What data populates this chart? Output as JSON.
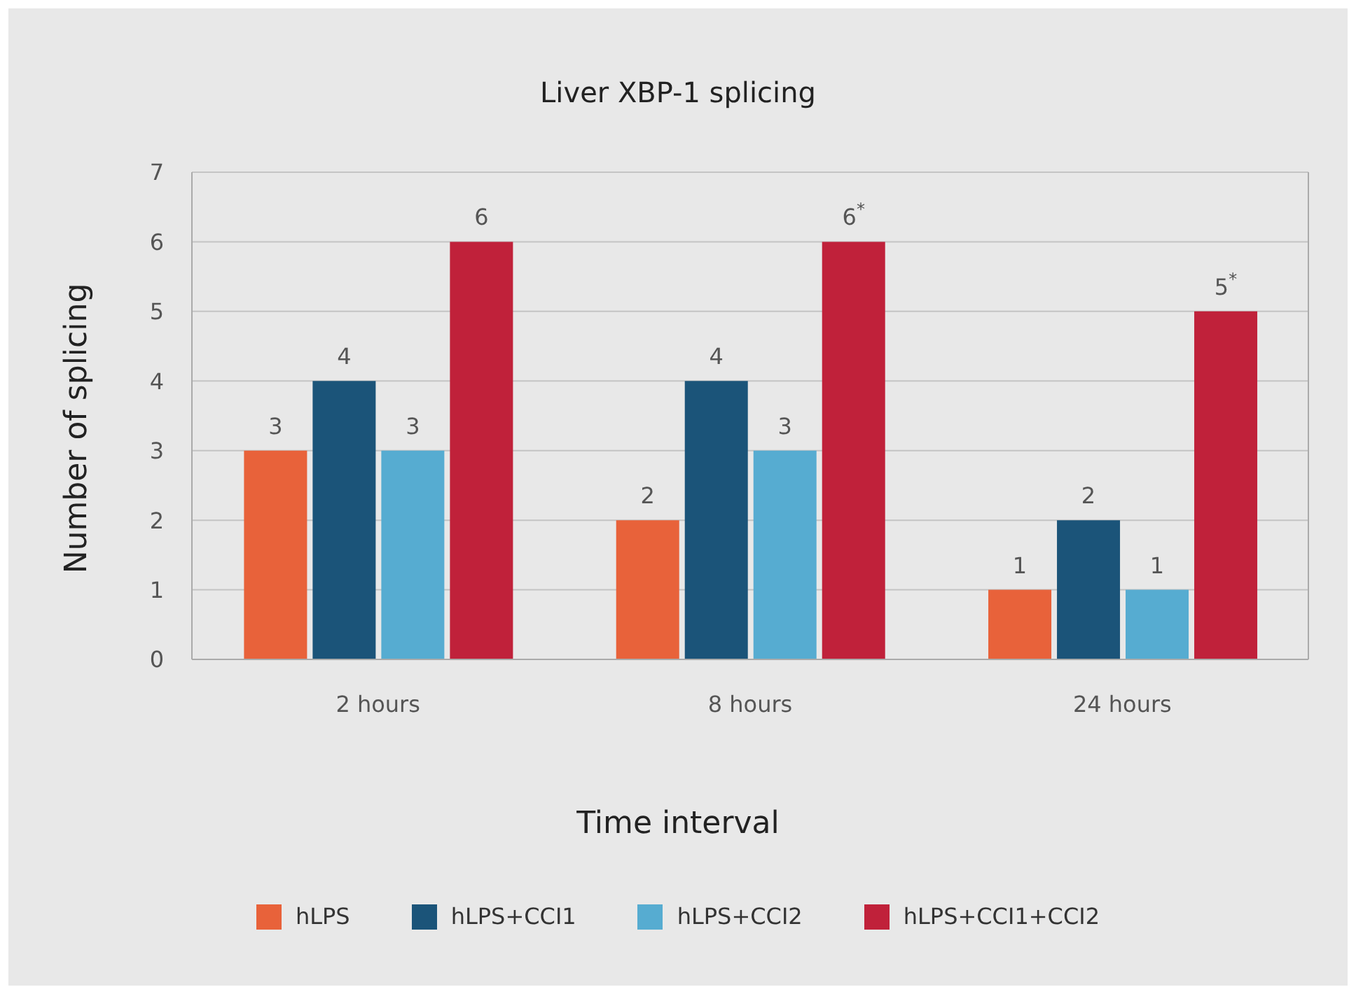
{
  "chart_data": {
    "type": "bar",
    "title": "Liver XBP-1 splicing",
    "xlabel": "Time interval",
    "ylabel": "Number of splicing",
    "categories": [
      "2 hours",
      "8 hours",
      "24 hours"
    ],
    "series": [
      {
        "name": "hLPS",
        "color": "#e8623a",
        "values": [
          3,
          2,
          1
        ],
        "value_labels": [
          "3",
          "2",
          "1"
        ]
      },
      {
        "name": "hLPS+CCI1",
        "color": "#1b5479",
        "values": [
          4,
          4,
          2
        ],
        "value_labels": [
          "4",
          "4",
          "2"
        ]
      },
      {
        "name": "hLPS+CCI2",
        "color": "#56acd1",
        "values": [
          3,
          3,
          1
        ],
        "value_labels": [
          "3",
          "3",
          "1"
        ]
      },
      {
        "name": "hLPS+CCI1+CCI2",
        "color": "#c0213a",
        "values": [
          6,
          6,
          5
        ],
        "value_labels": [
          "6",
          "6$^{*}$",
          "5$^{*}$"
        ]
      }
    ],
    "ylim": [
      0,
      7
    ],
    "yticks": [
      0,
      1,
      2,
      3,
      4,
      5,
      6,
      7
    ],
    "grid": "y",
    "legend": "bottom"
  }
}
